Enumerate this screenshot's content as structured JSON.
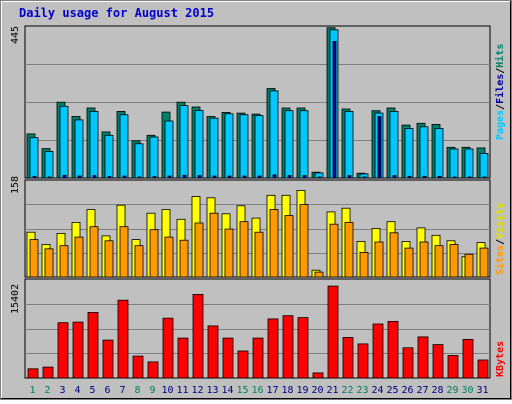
{
  "title": "Daily usage for August 2015",
  "colors": {
    "background": "#c0c0c0",
    "border": "#808080",
    "title": "#0000cc",
    "hits": "#00806b",
    "files": "#00c8ff",
    "pages": "#0000a0",
    "visits": "#ffff00",
    "sites": "#ff9900",
    "kbytes": "#ff0000",
    "weekday_label": "#000080",
    "weekend_label": "#00805a"
  },
  "panels": {
    "top": {
      "max_label": "445",
      "legend": {
        "pages": "Pages",
        "sep1": "/",
        "files": "Files",
        "sep2": "/",
        "hits": "Hits"
      }
    },
    "middle": {
      "max_label": "158",
      "legend": {
        "sites": "Sites",
        "sep": "/",
        "visits": "Visits"
      }
    },
    "bottom": {
      "max_label": "15402",
      "legend": {
        "kbytes": "KBytes"
      }
    }
  },
  "chart_data": {
    "type": "bar",
    "title": "Daily usage for August 2015",
    "categories": [
      "1",
      "2",
      "3",
      "4",
      "5",
      "6",
      "7",
      "8",
      "9",
      "10",
      "11",
      "12",
      "13",
      "14",
      "15",
      "16",
      "17",
      "18",
      "19",
      "20",
      "21",
      "22",
      "23",
      "24",
      "25",
      "26",
      "27",
      "28",
      "29",
      "30",
      "31"
    ],
    "weekend_days": [
      "1",
      "2",
      "8",
      "9",
      "15",
      "16",
      "22",
      "23",
      "29",
      "30"
    ],
    "ylim_top": [
      0,
      445
    ],
    "ylim_middle": [
      0,
      158
    ],
    "ylim_bottom": [
      0,
      15402
    ],
    "series": [
      {
        "name": "Hits",
        "panel": "top",
        "values": [
          129,
          86,
          222,
          180,
          205,
          135,
          195,
          109,
          125,
          193,
          222,
          208,
          180,
          192,
          190,
          187,
          262,
          205,
          205,
          17,
          440,
          202,
          14,
          197,
          205,
          155,
          160,
          157,
          90,
          90,
          88
        ]
      },
      {
        "name": "Files",
        "panel": "top",
        "values": [
          118,
          78,
          210,
          170,
          195,
          125,
          185,
          100,
          120,
          167,
          212,
          198,
          175,
          188,
          185,
          183,
          255,
          197,
          197,
          15,
          434,
          195,
          12,
          190,
          195,
          145,
          150,
          145,
          85,
          85,
          72
        ]
      },
      {
        "name": "Pages",
        "panel": "top",
        "values": [
          5,
          3,
          8,
          6,
          7,
          4,
          6,
          3,
          4,
          6,
          8,
          7,
          6,
          6,
          6,
          6,
          9,
          7,
          7,
          1,
          400,
          7,
          1,
          180,
          7,
          5,
          5,
          5,
          3,
          3,
          3
        ]
      },
      {
        "name": "Visits",
        "panel": "middle",
        "values": [
          73,
          53,
          71,
          89,
          110,
          67,
          117,
          61,
          104,
          110,
          94,
          131,
          129,
          103,
          116,
          96,
          133,
          133,
          141,
          11,
          106,
          112,
          58,
          79,
          90,
          58,
          80,
          68,
          59,
          33,
          56
        ]
      },
      {
        "name": "Sites",
        "panel": "middle",
        "values": [
          61,
          46,
          51,
          65,
          82,
          59,
          82,
          51,
          77,
          65,
          60,
          88,
          104,
          78,
          90,
          73,
          110,
          100,
          118,
          8,
          86,
          89,
          40,
          57,
          72,
          47,
          57,
          51,
          53,
          37,
          47
        ]
      },
      {
        "name": "KBytes",
        "panel": "bottom",
        "values": [
          1430,
          1700,
          8600,
          8700,
          10200,
          5900,
          12100,
          3400,
          2500,
          9300,
          6200,
          13000,
          8100,
          6200,
          4200,
          6200,
          9200,
          9700,
          9400,
          800,
          14300,
          6300,
          5300,
          8400,
          8800,
          4700,
          6400,
          5200,
          3500,
          6000,
          2800
        ]
      }
    ]
  }
}
